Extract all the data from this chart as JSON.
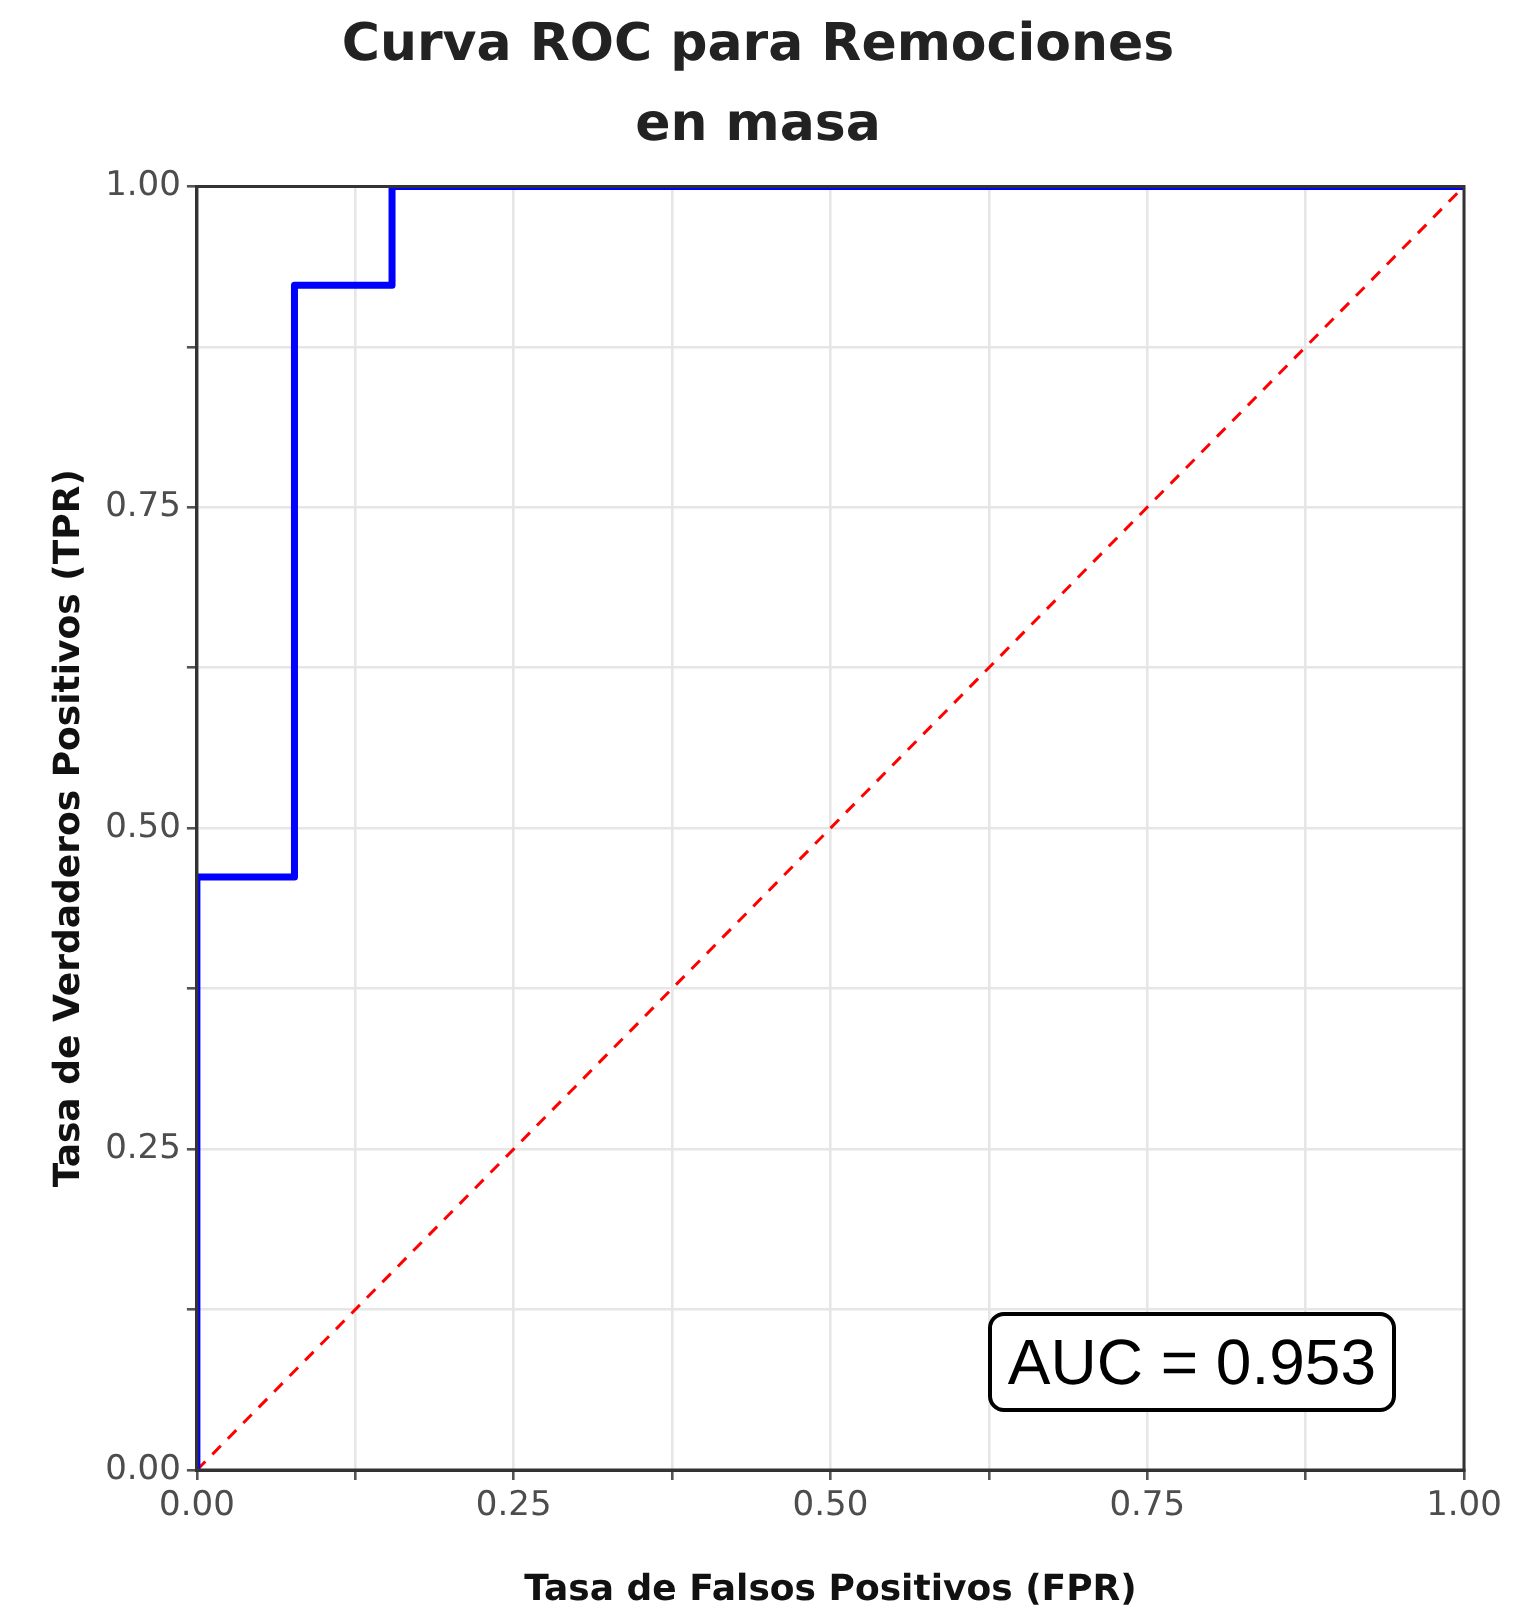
{
  "chart_data": {
    "type": "line",
    "title": "Curva ROC para Remociones\nen masa",
    "xlabel": "Tasa de Falsos Positivos (FPR)",
    "ylabel": "Tasa de Verdaderos Positivos (TPR)",
    "series": [
      {
        "color": "#0000ff",
        "x": [
          0,
          0,
          0.077,
          0.077,
          0.154,
          0.154,
          1
        ],
        "values": [
          0,
          0.462,
          0.462,
          0.923,
          0.923,
          1,
          1
        ],
        "line_style": "solid"
      },
      {
        "color": "#ff0000",
        "x": [
          0,
          1
        ],
        "values": [
          0,
          1
        ],
        "line_style": "dashed"
      }
    ],
    "xlim": [
      0,
      1
    ],
    "ylim": [
      0,
      1
    ],
    "xticks": [
      {
        "value": 0,
        "label": "0.00"
      },
      {
        "value": 0.125,
        "label": null
      },
      {
        "value": 0.25,
        "label": "0.25"
      },
      {
        "value": 0.375,
        "label": null
      },
      {
        "value": 0.5,
        "label": "0.50"
      },
      {
        "value": 0.625,
        "label": null
      },
      {
        "value": 0.75,
        "label": "0.75"
      },
      {
        "value": 0.875,
        "label": null
      },
      {
        "value": 1,
        "label": "1.00"
      }
    ],
    "yticks": [
      {
        "value": 0,
        "label": "0.00"
      },
      {
        "value": 0.125,
        "label": null
      },
      {
        "value": 0.25,
        "label": "0.25"
      },
      {
        "value": 0.375,
        "label": null
      },
      {
        "value": 0.5,
        "label": "0.50"
      },
      {
        "value": 0.625,
        "label": null
      },
      {
        "value": 0.75,
        "label": "0.75"
      },
      {
        "value": 0.875,
        "label": null
      },
      {
        "value": 1,
        "label": "1.00"
      }
    ],
    "grid": true,
    "legend": false,
    "marker": "none",
    "annotations": [
      "AUC = 0.953"
    ]
  }
}
